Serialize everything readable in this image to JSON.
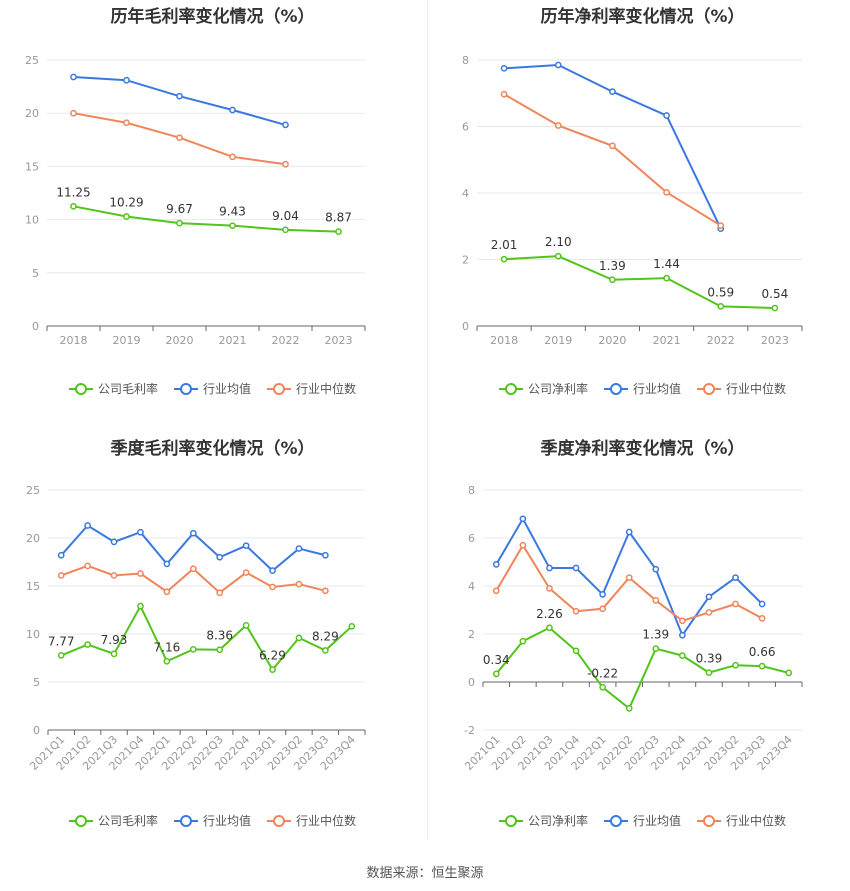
{
  "source": "数据来源：恒生聚源",
  "colors": {
    "company": "#52c41a",
    "avg": "#3a78e0",
    "median": "#f0845a",
    "grid": "#e8e8e8",
    "axis": "#999999",
    "label": "#333333"
  },
  "chart_data": [
    {
      "type": "line",
      "title": "历年毛利率变化情况（%）",
      "categories": [
        "2018",
        "2019",
        "2020",
        "2021",
        "2022",
        "2023"
      ],
      "ylim": [
        0,
        25
      ],
      "yticks": [
        0,
        5,
        10,
        15,
        20,
        25
      ],
      "series": [
        {
          "name": "公司毛利率",
          "key": "company",
          "values": [
            11.25,
            10.29,
            9.67,
            9.43,
            9.04,
            8.87
          ]
        },
        {
          "name": "行业均值",
          "key": "avg",
          "values": [
            23.4,
            23.1,
            21.6,
            20.3,
            18.9,
            null
          ]
        },
        {
          "name": "行业中位数",
          "key": "median",
          "values": [
            20.0,
            19.1,
            17.7,
            15.9,
            15.2,
            null
          ]
        }
      ],
      "data_labels": [
        "11.25",
        "10.29",
        "9.67",
        "9.43",
        "9.04",
        "8.87"
      ],
      "legend": "bottom"
    },
    {
      "type": "line",
      "title": "历年净利率变化情况（%）",
      "categories": [
        "2018",
        "2019",
        "2020",
        "2021",
        "2022",
        "2023"
      ],
      "ylim": [
        0,
        8
      ],
      "yticks": [
        0,
        2,
        4,
        6,
        8
      ],
      "series": [
        {
          "name": "公司净利率",
          "key": "company",
          "values": [
            2.01,
            2.1,
            1.39,
            1.44,
            0.59,
            0.54
          ]
        },
        {
          "name": "行业均值",
          "key": "avg",
          "values": [
            7.75,
            7.85,
            7.05,
            6.33,
            2.93,
            null
          ]
        },
        {
          "name": "行业中位数",
          "key": "median",
          "values": [
            6.97,
            6.03,
            5.42,
            4.02,
            3.02,
            null
          ]
        }
      ],
      "data_labels": [
        "2.01",
        "2.10",
        "1.39",
        "1.44",
        "0.59",
        "0.54"
      ],
      "legend": "bottom"
    },
    {
      "type": "line",
      "title": "季度毛利率变化情况（%）",
      "categories": [
        "2021Q1",
        "2021Q2",
        "2021Q3",
        "2021Q4",
        "2022Q1",
        "2022Q2",
        "2022Q3",
        "2022Q4",
        "2023Q1",
        "2023Q2",
        "2023Q3",
        "2023Q4"
      ],
      "ylim": [
        0,
        25
      ],
      "yticks": [
        0,
        5,
        10,
        15,
        20,
        25
      ],
      "series": [
        {
          "name": "公司毛利率",
          "key": "company",
          "values": [
            7.77,
            8.9,
            7.93,
            12.9,
            7.16,
            8.4,
            8.36,
            10.9,
            6.29,
            9.6,
            8.29,
            10.8
          ]
        },
        {
          "name": "行业均值",
          "key": "avg",
          "values": [
            18.2,
            21.3,
            19.6,
            20.6,
            17.3,
            20.5,
            18.0,
            19.2,
            16.6,
            18.9,
            18.2,
            null
          ]
        },
        {
          "name": "行业中位数",
          "key": "median",
          "values": [
            16.1,
            17.1,
            16.1,
            16.3,
            14.4,
            16.8,
            14.3,
            16.4,
            14.9,
            15.2,
            14.5,
            null
          ]
        }
      ],
      "data_labels": [
        "7.77",
        "",
        "7.93",
        "",
        "7.16",
        "",
        "8.36",
        "",
        "6.29",
        "",
        "8.29",
        ""
      ],
      "legend": "bottom"
    },
    {
      "type": "line",
      "title": "季度净利率变化情况（%）",
      "categories": [
        "2021Q1",
        "2021Q2",
        "2021Q3",
        "2021Q4",
        "2022Q1",
        "2022Q2",
        "2022Q3",
        "2022Q4",
        "2023Q1",
        "2023Q2",
        "2023Q3",
        "2023Q4"
      ],
      "ylim": [
        -2,
        8
      ],
      "yticks": [
        -2,
        0,
        2,
        4,
        6,
        8
      ],
      "series": [
        {
          "name": "公司净利率",
          "key": "company",
          "values": [
            0.34,
            1.7,
            2.26,
            1.3,
            -0.22,
            -1.1,
            1.39,
            1.1,
            0.39,
            0.7,
            0.66,
            0.38
          ]
        },
        {
          "name": "行业均值",
          "key": "avg",
          "values": [
            4.9,
            6.8,
            4.75,
            4.75,
            3.65,
            6.25,
            4.7,
            1.95,
            3.55,
            4.35,
            3.25,
            null
          ]
        },
        {
          "name": "行业中位数",
          "key": "median",
          "values": [
            3.8,
            5.7,
            3.9,
            2.95,
            3.05,
            4.35,
            3.4,
            2.55,
            2.9,
            3.25,
            2.65,
            null
          ]
        }
      ],
      "data_labels": [
        "0.34",
        "",
        "2.26",
        "",
        "-0.22",
        "",
        "1.39",
        "",
        "0.39",
        "",
        "0.66",
        ""
      ],
      "legend": "bottom"
    }
  ]
}
